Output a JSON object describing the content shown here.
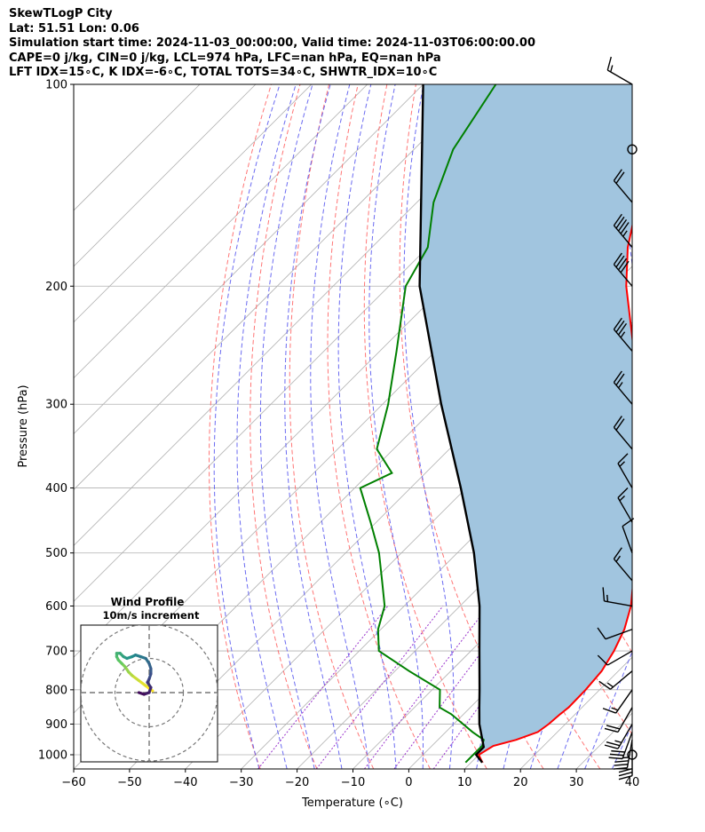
{
  "header": {
    "station": "SkewTLogP City",
    "location": "Lat: 51.51   Lon: 0.06",
    "times": "Simulation start time: 2024-11-03_00:00:00, Valid time: 2024-11-03T06:00:00.00",
    "params": "CAPE=0 j/kg, CIN=0 j/kg, LCL=974 hPa, LFC=nan hPa, EQ=nan hPa",
    "indices": "LFT IDX=15∘C, K IDX=-6∘C, TOTAL TOTS=34∘C, SHWTR_IDX=10∘C"
  },
  "chart_data": {
    "type": "skew-t log-p",
    "xlabel": "Temperature (∘C)",
    "ylabel": "Pressure (hPa)",
    "xlim": [
      -60,
      40
    ],
    "ylim_hpa": [
      1050,
      100
    ],
    "x_ticks": [
      "−60",
      "−50",
      "−40",
      "−30",
      "−20",
      "−10",
      "0",
      "10",
      "20",
      "30",
      "40"
    ],
    "y_ticks": [
      "100",
      "200",
      "300",
      "400",
      "500",
      "600",
      "700",
      "800",
      "900",
      "1000"
    ],
    "y_tick_values": [
      100,
      200,
      300,
      400,
      500,
      600,
      700,
      800,
      900,
      1000
    ],
    "grid": true,
    "colors": {
      "temperature": "#ff0000",
      "dewpoint": "#008000",
      "parcel": "#000000",
      "cape_fill": "#a1c5df",
      "dry_adiabats": "#ff6666",
      "moist_adiabats": "#5b5bf0",
      "mixing_ratio": "#9933cc",
      "isotherms": "#b0b0b0"
    },
    "temperature": {
      "p": [
        1027,
        1000,
        970,
        950,
        925,
        900,
        870,
        850,
        800,
        750,
        700,
        650,
        600,
        550,
        500,
        450,
        400,
        350,
        300,
        250,
        200,
        175,
        150,
        125,
        100
      ],
      "t": [
        12,
        10,
        11,
        14,
        16.5,
        17,
        17.3,
        17.6,
        17.5,
        17,
        15.6,
        13.6,
        10.6,
        6.5,
        2.2,
        -2.7,
        -8.4,
        -15.5,
        -24,
        -34.5,
        -47.5,
        -54.2,
        -60.5,
        -68.5,
        -77.5
      ]
    },
    "dewpoint": {
      "p": [
        1027,
        1000,
        970,
        950,
        925,
        900,
        870,
        850,
        800,
        750,
        700,
        650,
        600,
        550,
        500,
        450,
        400,
        380,
        350,
        300,
        250,
        200,
        175,
        150,
        125,
        100
      ],
      "t": [
        9,
        9,
        9,
        8.2,
        4.8,
        1.7,
        -2.2,
        -5.5,
        -8.6,
        -17.5,
        -26.5,
        -30.5,
        -33.5,
        -38.5,
        -44,
        -51,
        -59,
        -56,
        -63,
        -69,
        -77,
        -87,
        -90,
        -97,
        -103,
        -107
      ]
    },
    "parcel": {
      "p": [
        1027,
        1000,
        974,
        900,
        850,
        800,
        700,
        600,
        500,
        400,
        300,
        200,
        100
      ],
      "t": [
        12,
        9.5,
        9.5,
        4.6,
        1.6,
        -1.5,
        -8.5,
        -16.5,
        -27,
        -41,
        -59.5,
        -84.5,
        -120
      ]
    },
    "wind_barbs": {
      "p": [
        1000,
        975,
        950,
        925,
        900,
        850,
        800,
        750,
        700,
        650,
        600,
        550,
        500,
        450,
        400,
        350,
        300,
        250,
        200,
        175,
        150,
        125,
        100
      ],
      "speed_kt": [
        0,
        30,
        35,
        30,
        25,
        20,
        15,
        15,
        10,
        10,
        15,
        15,
        10,
        15,
        15,
        20,
        25,
        35,
        40,
        45,
        20,
        0,
        15
      ],
      "dir_deg": [
        0,
        180,
        190,
        200,
        210,
        210,
        215,
        230,
        240,
        250,
        280,
        320,
        340,
        330,
        330,
        320,
        320,
        320,
        320,
        320,
        320,
        0,
        300
      ]
    },
    "hodograph": {
      "title": "Wind Profile",
      "subtitle": "10m/s increment",
      "ring_ms": [
        10,
        20,
        30,
        40
      ],
      "range_ms": 40,
      "u": [
        1,
        -1,
        -3,
        -5,
        -6,
        -7,
        -8,
        -9,
        -9.5,
        -9.5,
        -8.5,
        -7.5,
        -6.5,
        -5,
        -4,
        -2.5,
        -1,
        0,
        0.5,
        0.5,
        0,
        -0.5,
        0.5,
        0,
        -1.5,
        -3
      ],
      "v": [
        0.5,
        2,
        3.5,
        5,
        6,
        7.5,
        8.5,
        9.5,
        10.5,
        11.5,
        11.5,
        10.5,
        10,
        10.5,
        11,
        10.5,
        10,
        8.5,
        7,
        5.5,
        4,
        3,
        1.5,
        0,
        -0.5,
        0
      ]
    }
  }
}
